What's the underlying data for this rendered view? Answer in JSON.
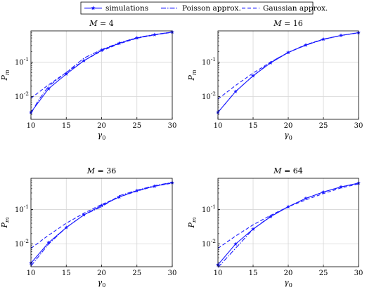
{
  "legend": {
    "entries": [
      {
        "label": "simulations",
        "style": "solid-star"
      },
      {
        "label": "Poisson approx.",
        "style": "dashdot"
      },
      {
        "label": "Gaussian approx.",
        "style": "dashed"
      }
    ]
  },
  "colors": {
    "series": "#1a1aff",
    "grid": "#d6d6d6",
    "axes": "#000000"
  },
  "chart_data": [
    {
      "type": "line",
      "title": "M = 4",
      "xlabel": "γ0",
      "ylabel": "Pm",
      "xlim": [
        10,
        30
      ],
      "ylim": [
        0.0022,
        0.8
      ],
      "yscale": "log",
      "xticks": [
        "10",
        "15",
        "20",
        "25",
        "30"
      ],
      "yticks": [
        {
          "value": 0.01,
          "label": "10^-2"
        },
        {
          "value": 0.1,
          "label": "10^-1"
        }
      ],
      "grid": true,
      "series": [
        {
          "name": "simulations",
          "x": [
            10,
            12.5,
            15,
            17.5,
            20,
            22.5,
            25,
            27.5,
            30
          ],
          "y": [
            0.0035,
            0.017,
            0.045,
            0.11,
            0.22,
            0.35,
            0.5,
            0.62,
            0.74
          ]
        },
        {
          "name": "Poisson approx.",
          "x": [
            10,
            11,
            12.5,
            15,
            17.5,
            20,
            22.5,
            25,
            27.5,
            30
          ],
          "y": [
            0.0032,
            0.0075,
            0.02,
            0.05,
            0.13,
            0.23,
            0.36,
            0.51,
            0.63,
            0.74
          ]
        },
        {
          "name": "Gaussian approx.",
          "x": [
            10,
            12.5,
            15,
            17.5,
            20,
            22.5,
            25,
            27.5,
            30
          ],
          "y": [
            0.009,
            0.022,
            0.05,
            0.11,
            0.21,
            0.34,
            0.49,
            0.61,
            0.73
          ]
        }
      ]
    },
    {
      "type": "line",
      "title": "M = 16",
      "xlabel": "γ0",
      "ylabel": "Pm",
      "xlim": [
        10,
        30
      ],
      "ylim": [
        0.0022,
        0.8
      ],
      "yscale": "log",
      "xticks": [
        "10",
        "15",
        "20",
        "25",
        "30"
      ],
      "yticks": [
        {
          "value": 0.01,
          "label": "10^-2"
        },
        {
          "value": 0.1,
          "label": "10^-1"
        }
      ],
      "grid": true,
      "series": [
        {
          "name": "simulations",
          "x": [
            10,
            12.5,
            15,
            17.5,
            20,
            22.5,
            25,
            27.5,
            30
          ],
          "y": [
            0.0035,
            0.014,
            0.04,
            0.095,
            0.19,
            0.31,
            0.46,
            0.59,
            0.71
          ]
        },
        {
          "name": "Poisson approx.",
          "x": [
            10,
            12.5,
            15,
            17.5,
            20,
            22.5,
            25,
            27.5,
            30
          ],
          "y": [
            0.0035,
            0.014,
            0.04,
            0.1,
            0.19,
            0.31,
            0.45,
            0.59,
            0.71
          ]
        },
        {
          "name": "Gaussian approx.",
          "x": [
            10,
            12.5,
            15,
            17.5,
            20,
            22.5,
            25,
            27.5,
            30
          ],
          "y": [
            0.0085,
            0.021,
            0.048,
            0.1,
            0.19,
            0.32,
            0.46,
            0.59,
            0.7
          ]
        }
      ]
    },
    {
      "type": "line",
      "title": "M = 36",
      "xlabel": "γ0",
      "ylabel": "Pm",
      "xlim": [
        10,
        30
      ],
      "ylim": [
        0.0022,
        0.8
      ],
      "yscale": "log",
      "xticks": [
        "10",
        "15",
        "20",
        "25",
        "30"
      ],
      "yticks": [
        {
          "value": 0.01,
          "label": "10^-2"
        },
        {
          "value": 0.1,
          "label": "10^-1"
        }
      ],
      "grid": true,
      "series": [
        {
          "name": "simulations",
          "x": [
            10,
            12.5,
            15,
            17.5,
            20,
            22.5,
            25,
            27.5,
            30
          ],
          "y": [
            0.0028,
            0.011,
            0.03,
            0.07,
            0.13,
            0.23,
            0.35,
            0.47,
            0.6
          ]
        },
        {
          "name": "Poisson approx.",
          "x": [
            10,
            12.5,
            15,
            17.5,
            20,
            22.5,
            25,
            27.5,
            30
          ],
          "y": [
            0.0023,
            0.01,
            0.03,
            0.07,
            0.12,
            0.25,
            0.36,
            0.49,
            0.61
          ]
        },
        {
          "name": "Gaussian approx.",
          "x": [
            10,
            12.5,
            15,
            17.5,
            20,
            22.5,
            25,
            27.5,
            30
          ],
          "y": [
            0.0075,
            0.018,
            0.04,
            0.078,
            0.14,
            0.23,
            0.34,
            0.47,
            0.58
          ]
        }
      ]
    },
    {
      "type": "line",
      "title": "M = 64",
      "xlabel": "γ0",
      "ylabel": "Pm",
      "xlim": [
        10,
        30
      ],
      "ylim": [
        0.0022,
        0.8
      ],
      "yscale": "log",
      "xticks": [
        "10",
        "15",
        "20",
        "25",
        "30"
      ],
      "yticks": [
        {
          "value": 0.01,
          "label": "10^-2"
        },
        {
          "value": 0.1,
          "label": "10^-1"
        }
      ],
      "grid": true,
      "series": [
        {
          "name": "simulations",
          "x": [
            10,
            12.5,
            15,
            17.5,
            20,
            22.5,
            25,
            27.5,
            30
          ],
          "y": [
            0.0025,
            0.01,
            0.027,
            0.062,
            0.12,
            0.21,
            0.32,
            0.45,
            0.58
          ]
        },
        {
          "name": "Poisson approx.",
          "x": [
            10,
            12.5,
            15,
            17.5,
            20,
            22.5,
            25,
            27.5,
            30
          ],
          "y": [
            0.0021,
            0.0075,
            0.027,
            0.064,
            0.12,
            0.21,
            0.32,
            0.45,
            0.58
          ]
        },
        {
          "name": "Gaussian approx.",
          "x": [
            10,
            12.5,
            15,
            17.5,
            20,
            22.5,
            25,
            27.5,
            30
          ],
          "y": [
            0.0075,
            0.017,
            0.036,
            0.068,
            0.12,
            0.19,
            0.29,
            0.42,
            0.55
          ]
        }
      ]
    }
  ]
}
